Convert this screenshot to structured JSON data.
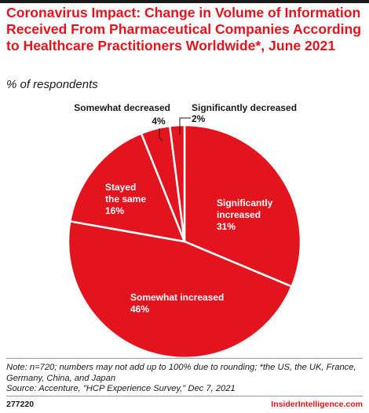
{
  "header": {
    "title": "Coronavirus Impact: Change in Volume of Information Received From Pharmaceutical Companies According to Healthcare Practitioners Worldwide*, June 2021",
    "subtitle": "% of respondents"
  },
  "chart_data": {
    "type": "pie",
    "unit": "%",
    "slices": [
      {
        "label_lines": [
          "Significantly",
          "increased"
        ],
        "display": "31%",
        "value": 31,
        "color": "#e3141e"
      },
      {
        "label_lines": [
          "Somewhat increased"
        ],
        "display": "46%",
        "value": 46,
        "color": "#e3141e"
      },
      {
        "label_lines": [
          "Stayed",
          "the same"
        ],
        "display": "16%",
        "value": 16,
        "color": "#e3141e"
      },
      {
        "label_lines": [
          "Somewhat decreased"
        ],
        "display": "4%",
        "value": 4,
        "color": "#e3141e"
      },
      {
        "label_lines": [
          "Significantly decreased"
        ],
        "display": "2%",
        "value": 2,
        "color": "#e3141e"
      }
    ]
  },
  "notes": {
    "note": "Note: n=720; numbers may not add up to 100% due to rounding; *the US, the UK, France, Germany, China, and Japan",
    "source": "Source: Accenture, \"HCP Experience Survey,\" Dec 7, 2021"
  },
  "footer": {
    "id": "277220",
    "brand": "InsiderIntelligence.com"
  }
}
